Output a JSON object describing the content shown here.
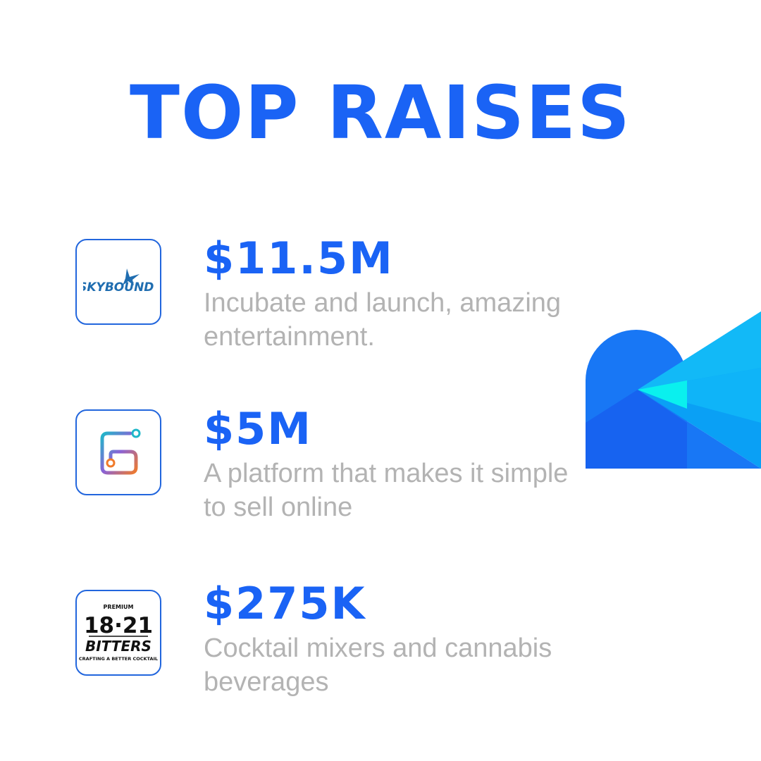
{
  "colors": {
    "accent": "#1a63f5",
    "description_text": "#b3b3b3",
    "logo_border": "#2266dd"
  },
  "title": "TOP RAISES",
  "raises": [
    {
      "amount": "$11.5M",
      "description": "Incubate and launch, amazing entertainment.",
      "logo": {
        "icon": "skybound-logo",
        "text": "SKYBOUND."
      }
    },
    {
      "amount": "$5M",
      "description": "A platform that makes it simple to sell online",
      "logo": {
        "icon": "gradient-s-circuit-icon"
      }
    },
    {
      "amount": "$275K",
      "description": "Cocktail mixers and cannabis beverages",
      "logo": {
        "icon": "1821-bitters-logo",
        "premium": "PREMIUM",
        "number": "18·21",
        "brand": "BITTERS",
        "tagline": "CRAFTING A BETTER COCKTAIL"
      }
    }
  ],
  "decoration": {
    "icon": "brand-shape-graphic"
  }
}
